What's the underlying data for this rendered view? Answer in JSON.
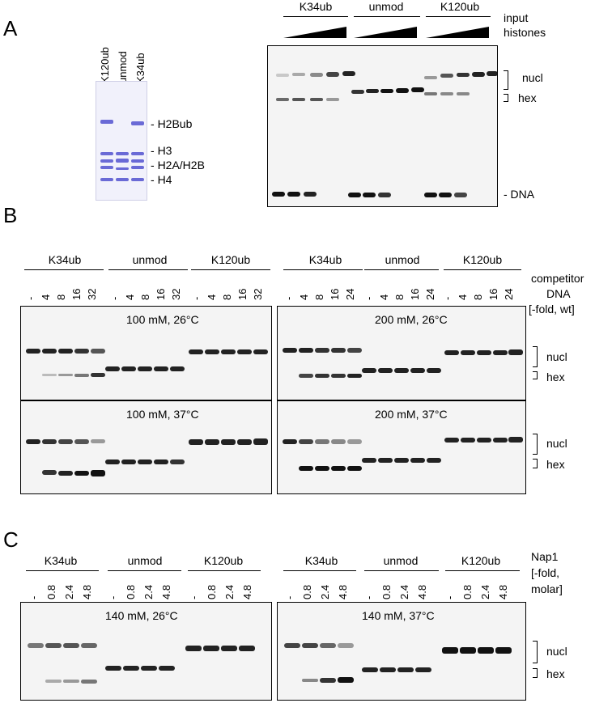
{
  "panels": {
    "a": "A",
    "b": "B",
    "c": "C"
  },
  "panel_a": {
    "coomassie_lanes": [
      "K120ub",
      "unmod",
      "K34ub"
    ],
    "coomassie_bands": [
      "H2Bub",
      "H3",
      "H2A/H2B",
      "H4"
    ],
    "groups": [
      "K34ub",
      "unmod",
      "K120ub"
    ],
    "input_label_1": "input",
    "input_label_2": "histones",
    "right_labels": {
      "nucl": "nucl",
      "hex": "hex",
      "dna": "- DNA"
    }
  },
  "panel_b": {
    "groups_left": [
      "K34ub",
      "unmod",
      "K120ub"
    ],
    "groups_right": [
      "K34ub",
      "unmod",
      "K120ub"
    ],
    "lanes_left": [
      "-",
      "4",
      "8",
      "16",
      "32"
    ],
    "lanes_right": [
      "-",
      "4",
      "8",
      "16",
      "24"
    ],
    "competitor": [
      "competitor",
      "DNA",
      "[-fold, wt]"
    ],
    "conditions": [
      "100 mM, 26°C",
      "200 mM, 26°C",
      "100 mM, 37°C",
      "200 mM, 37°C"
    ],
    "right_labels": {
      "nucl": "nucl",
      "hex": "hex"
    }
  },
  "panel_c": {
    "groups_left": [
      "K34ub",
      "unmod",
      "K120ub"
    ],
    "groups_right": [
      "K34ub",
      "unmod",
      "K120ub"
    ],
    "lanes": [
      "-",
      "0.8",
      "2.4",
      "4.8"
    ],
    "nap1": [
      "Nap1",
      "[-fold,",
      "molar]"
    ],
    "conditions": [
      "140 mM, 26°C",
      "140 mM, 37°C"
    ],
    "right_labels": {
      "nucl": "nucl",
      "hex": "hex"
    }
  }
}
